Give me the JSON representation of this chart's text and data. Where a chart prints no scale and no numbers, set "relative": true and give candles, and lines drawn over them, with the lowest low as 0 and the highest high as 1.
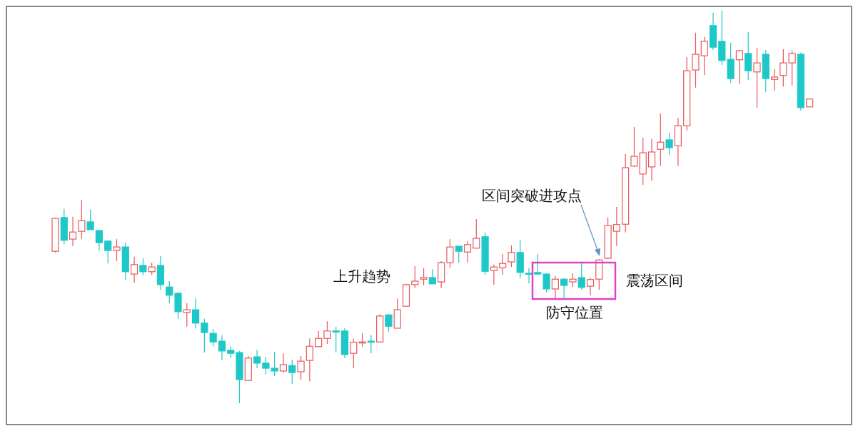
{
  "chart_data": {
    "type": "candlestick",
    "relative": true,
    "categories": [
      null,
      null,
      null,
      null,
      null,
      null,
      null,
      null,
      null,
      null,
      null,
      null,
      null,
      null,
      null,
      null,
      null,
      null,
      null,
      null,
      null,
      null,
      null,
      null,
      null,
      null,
      null,
      null,
      null,
      null,
      null,
      null,
      null,
      null,
      null,
      null,
      null,
      null,
      null,
      null,
      null,
      null,
      null,
      null,
      null,
      null,
      null,
      null,
      null,
      null,
      null,
      null,
      null,
      null,
      null,
      null,
      null,
      null,
      null,
      null,
      null,
      null,
      null,
      null,
      null,
      null,
      null,
      null,
      null,
      null,
      null,
      null,
      null,
      null,
      null,
      null,
      null,
      null,
      null,
      null,
      null,
      null,
      null,
      null,
      null,
      null,
      null
    ],
    "ohlc": [
      [
        0.387,
        0.473,
        0.384,
        0.471
      ],
      [
        0.473,
        0.495,
        0.405,
        0.415
      ],
      [
        0.418,
        0.475,
        0.4,
        0.436
      ],
      [
        0.438,
        0.518,
        0.418,
        0.465
      ],
      [
        0.462,
        0.493,
        0.442,
        0.442
      ],
      [
        0.44,
        0.442,
        0.389,
        0.409
      ],
      [
        0.413,
        0.415,
        0.356,
        0.389
      ],
      [
        0.389,
        0.418,
        0.362,
        0.398
      ],
      [
        0.398,
        0.409,
        0.313,
        0.335
      ],
      [
        0.329,
        0.373,
        0.307,
        0.353
      ],
      [
        0.351,
        0.369,
        0.327,
        0.335
      ],
      [
        0.335,
        0.358,
        0.327,
        0.347
      ],
      [
        0.351,
        0.375,
        0.289,
        0.302
      ],
      [
        0.296,
        0.311,
        0.255,
        0.275
      ],
      [
        0.28,
        0.282,
        0.215,
        0.233
      ],
      [
        0.231,
        0.255,
        0.195,
        0.238
      ],
      [
        0.238,
        0.267,
        0.191,
        0.204
      ],
      [
        0.204,
        0.215,
        0.129,
        0.18
      ],
      [
        0.178,
        0.189,
        0.145,
        0.156
      ],
      [
        0.158,
        0.173,
        0.109,
        0.133
      ],
      [
        0.135,
        0.145,
        0.115,
        0.127
      ],
      [
        0.129,
        0.133,
        0.0,
        0.06
      ],
      [
        0.058,
        0.12,
        0.056,
        0.115
      ],
      [
        0.118,
        0.136,
        0.089,
        0.102
      ],
      [
        0.102,
        0.118,
        0.073,
        0.089
      ],
      [
        0.089,
        0.131,
        0.069,
        0.082
      ],
      [
        0.082,
        0.127,
        0.078,
        0.098
      ],
      [
        0.096,
        0.111,
        0.049,
        0.078
      ],
      [
        0.08,
        0.12,
        0.06,
        0.107
      ],
      [
        0.109,
        0.165,
        0.056,
        0.145
      ],
      [
        0.144,
        0.184,
        0.144,
        0.165
      ],
      [
        0.165,
        0.209,
        0.151,
        0.184
      ],
      [
        0.184,
        0.195,
        0.129,
        0.182
      ],
      [
        0.184,
        0.191,
        0.115,
        0.124
      ],
      [
        0.127,
        0.164,
        0.089,
        0.155
      ],
      [
        0.155,
        0.178,
        0.144,
        0.156
      ],
      [
        0.158,
        0.173,
        0.127,
        0.156
      ],
      [
        0.156,
        0.227,
        0.155,
        0.222
      ],
      [
        0.225,
        0.227,
        0.182,
        0.196
      ],
      [
        0.191,
        0.267,
        0.191,
        0.238
      ],
      [
        0.247,
        0.304,
        0.247,
        0.302
      ],
      [
        0.302,
        0.349,
        0.293,
        0.311
      ],
      [
        0.316,
        0.344,
        0.3,
        0.32
      ],
      [
        0.32,
        0.342,
        0.304,
        0.304
      ],
      [
        0.309,
        0.362,
        0.293,
        0.358
      ],
      [
        0.358,
        0.418,
        0.345,
        0.398
      ],
      [
        0.4,
        0.4,
        0.358,
        0.387
      ],
      [
        0.385,
        0.413,
        0.358,
        0.404
      ],
      [
        0.395,
        0.469,
        0.395,
        0.42
      ],
      [
        0.424,
        0.435,
        0.327,
        0.336
      ],
      [
        0.338,
        0.353,
        0.302,
        0.347
      ],
      [
        0.345,
        0.38,
        0.327,
        0.356
      ],
      [
        0.36,
        0.402,
        0.347,
        0.384
      ],
      [
        0.384,
        0.415,
        0.318,
        0.333
      ],
      [
        0.331,
        0.345,
        0.305,
        0.329
      ],
      [
        0.333,
        0.38,
        0.327,
        0.329
      ],
      [
        0.329,
        0.331,
        0.282,
        0.291
      ],
      [
        0.291,
        0.324,
        0.267,
        0.316
      ],
      [
        0.316,
        0.318,
        0.267,
        0.3
      ],
      [
        0.309,
        0.331,
        0.296,
        0.316
      ],
      [
        0.32,
        0.356,
        0.289,
        0.295
      ],
      [
        0.298,
        0.32,
        0.275,
        0.315
      ],
      [
        0.316,
        0.367,
        0.289,
        0.365
      ],
      [
        0.369,
        0.473,
        0.367,
        0.453
      ],
      [
        0.438,
        0.5,
        0.4,
        0.455
      ],
      [
        0.456,
        0.635,
        0.435,
        0.6
      ],
      [
        0.604,
        0.704,
        0.602,
        0.629
      ],
      [
        0.584,
        0.676,
        0.556,
        0.638
      ],
      [
        0.602,
        0.673,
        0.567,
        0.64
      ],
      [
        0.647,
        0.738,
        0.604,
        0.665
      ],
      [
        0.671,
        0.689,
        0.633,
        0.651
      ],
      [
        0.656,
        0.727,
        0.604,
        0.707
      ],
      [
        0.707,
        0.882,
        0.695,
        0.847
      ],
      [
        0.849,
        0.944,
        0.804,
        0.889
      ],
      [
        0.885,
        0.933,
        0.836,
        0.922
      ],
      [
        0.962,
        0.995,
        0.9,
        0.907
      ],
      [
        0.922,
        1.0,
        0.862,
        0.873
      ],
      [
        0.876,
        0.918,
        0.816,
        0.827
      ],
      [
        0.875,
        0.9,
        0.813,
        0.898
      ],
      [
        0.891,
        0.945,
        0.824,
        0.847
      ],
      [
        0.844,
        0.905,
        0.753,
        0.867
      ],
      [
        0.889,
        0.9,
        0.793,
        0.827
      ],
      [
        0.825,
        0.851,
        0.796,
        0.831
      ],
      [
        0.835,
        0.902,
        0.807,
        0.867
      ],
      [
        0.867,
        0.898,
        0.809,
        0.891
      ],
      [
        0.889,
        0.893,
        0.745,
        0.753
      ],
      [
        0.755,
        0.775,
        0.755,
        0.775
      ]
    ],
    "colors": [
      "#e8575a",
      "#1fc8c8",
      "#e8575a",
      "#e8575a",
      "#1fc8c8",
      "#1fc8c8",
      "#1fc8c8",
      "#e8575a",
      "#1fc8c8",
      "#e8575a",
      "#1fc8c8",
      "#e8575a",
      "#1fc8c8",
      "#1fc8c8",
      "#1fc8c8",
      "#e8575a",
      "#1fc8c8",
      "#1fc8c8",
      "#1fc8c8",
      "#1fc8c8",
      "#1fc8c8",
      "#1fc8c8",
      "#e8575a",
      "#1fc8c8",
      "#1fc8c8",
      "#1fc8c8",
      "#e8575a",
      "#1fc8c8",
      "#e8575a",
      "#e8575a",
      "#e8575a",
      "#e8575a",
      "#1fc8c8",
      "#1fc8c8",
      "#e8575a",
      "#e8575a",
      "#1fc8c8",
      "#e8575a",
      "#1fc8c8",
      "#e8575a",
      "#e8575a",
      "#e8575a",
      "#e8575a",
      "#1fc8c8",
      "#e8575a",
      "#e8575a",
      "#1fc8c8",
      "#e8575a",
      "#e8575a",
      "#1fc8c8",
      "#e8575a",
      "#e8575a",
      "#e8575a",
      "#1fc8c8",
      "#1fc8c8",
      "#1fc8c8",
      "#1fc8c8",
      "#e8575a",
      "#1fc8c8",
      "#e8575a",
      "#1fc8c8",
      "#e8575a",
      "#e8575a",
      "#e8575a",
      "#e8575a",
      "#e8575a",
      "#e8575a",
      "#e8575a",
      "#e8575a",
      "#e8575a",
      "#1fc8c8",
      "#e8575a",
      "#e8575a",
      "#e8575a",
      "#e8575a",
      "#1fc8c8",
      "#1fc8c8",
      "#1fc8c8",
      "#e8575a",
      "#1fc8c8",
      "#e8575a",
      "#1fc8c8",
      "#e8575a",
      "#e8575a",
      "#e8575a",
      "#1fc8c8",
      "#e8575a"
    ],
    "annotations": [
      "上升趋势",
      "区间突破进攻点",
      "震荡区间",
      "防守位置"
    ]
  }
}
